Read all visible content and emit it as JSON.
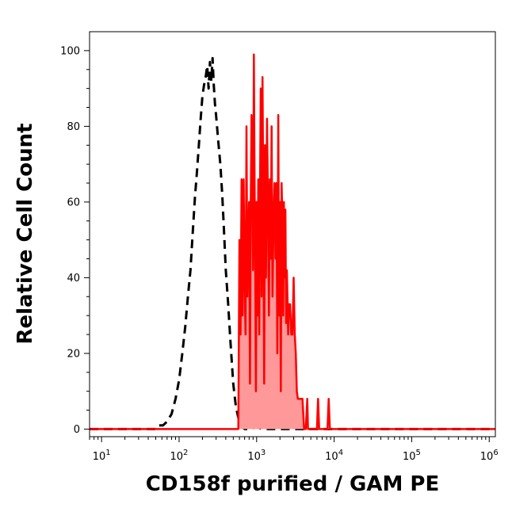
{
  "chart_data": {
    "type": "area",
    "xlabel": "CD158f purified / GAM PE",
    "ylabel": "Relative Cell Count",
    "xscale": "log",
    "xlim": [
      7,
      1200000
    ],
    "ylim": [
      -2,
      105
    ],
    "grid": false,
    "x_ticks": [
      {
        "value": 10,
        "base": "10",
        "exp": "1"
      },
      {
        "value": 100,
        "base": "10",
        "exp": "2"
      },
      {
        "value": 1000,
        "base": "10",
        "exp": "3"
      },
      {
        "value": 10000,
        "base": "10",
        "exp": "4"
      },
      {
        "value": 100000,
        "base": "10",
        "exp": "5"
      },
      {
        "value": 1000000,
        "base": "10",
        "exp": "6"
      }
    ],
    "y_ticks": [
      {
        "value": 0,
        "label": "0"
      },
      {
        "value": 20,
        "label": "20"
      },
      {
        "value": 40,
        "label": "40"
      },
      {
        "value": 60,
        "label": "60"
      },
      {
        "value": 80,
        "label": "80"
      },
      {
        "value": 100,
        "label": "100"
      }
    ],
    "series": [
      {
        "style": "dashed-outline",
        "color": "#000000",
        "x": [
          7,
          50,
          55,
          62,
          70,
          80,
          90,
          100,
          110,
          120,
          130,
          140,
          150,
          160,
          170,
          180,
          190,
          200,
          210,
          220,
          230,
          240,
          250,
          260,
          270,
          280,
          290,
          300,
          320,
          340,
          360,
          380,
          400,
          430,
          460,
          500,
          540,
          580,
          620,
          660,
          700,
          800,
          1000,
          1200,
          2000,
          10000,
          1200000
        ],
        "y": [
          0,
          0,
          1,
          1,
          2,
          4,
          8,
          13,
          20,
          27,
          35,
          42,
          52,
          61,
          68,
          75,
          82,
          88,
          91,
          93,
          96,
          90,
          97,
          92,
          98,
          91,
          86,
          83,
          76,
          70,
          62,
          52,
          42,
          33,
          23,
          12,
          6,
          3,
          1.5,
          0.5,
          0,
          0,
          0.5,
          0,
          0,
          0,
          0
        ]
      },
      {
        "style": "filled",
        "color": "#ff0000",
        "fill": "#ff9999",
        "x": [
          7,
          100,
          580,
          600,
          620,
          640,
          660,
          680,
          700,
          720,
          740,
          760,
          780,
          800,
          820,
          840,
          860,
          880,
          900,
          920,
          940,
          960,
          980,
          1000,
          1020,
          1050,
          1080,
          1100,
          1130,
          1160,
          1190,
          1220,
          1250,
          1280,
          1320,
          1360,
          1400,
          1440,
          1480,
          1520,
          1560,
          1600,
          1650,
          1700,
          1750,
          1800,
          1850,
          1900,
          1950,
          2000,
          2050,
          2100,
          2150,
          2200,
          2250,
          2300,
          2350,
          2400,
          2450,
          2500,
          2550,
          2600,
          2700,
          2800,
          2900,
          3000,
          3100,
          3200,
          3300,
          3400,
          3500,
          3700,
          3900,
          4100,
          4300,
          4500,
          4600,
          4800,
          5100,
          5400,
          5700,
          5800,
          6000,
          6200,
          6400,
          6500,
          6800,
          7200,
          7600,
          8000,
          8200,
          8500,
          8800,
          9000,
          10000,
          50000,
          1200000
        ],
        "y": [
          0,
          0,
          0,
          50,
          25,
          66,
          30,
          66,
          40,
          25,
          80,
          35,
          50,
          60,
          12,
          60,
          83,
          65,
          42,
          99,
          66,
          40,
          10,
          60,
          30,
          66,
          25,
          55,
          90,
          35,
          93,
          60,
          12,
          75,
          40,
          82,
          60,
          30,
          66,
          45,
          80,
          35,
          55,
          65,
          45,
          65,
          20,
          83,
          30,
          60,
          10,
          65,
          55,
          30,
          60,
          40,
          58,
          28,
          42,
          35,
          25,
          33,
          33,
          25,
          25,
          40,
          25,
          20,
          10,
          8,
          8,
          8,
          8,
          0,
          0,
          8,
          0,
          0,
          0,
          0,
          0,
          0,
          0,
          8,
          0,
          0,
          0,
          0,
          0,
          0,
          0,
          8,
          0,
          0,
          0,
          0,
          0
        ]
      }
    ]
  }
}
